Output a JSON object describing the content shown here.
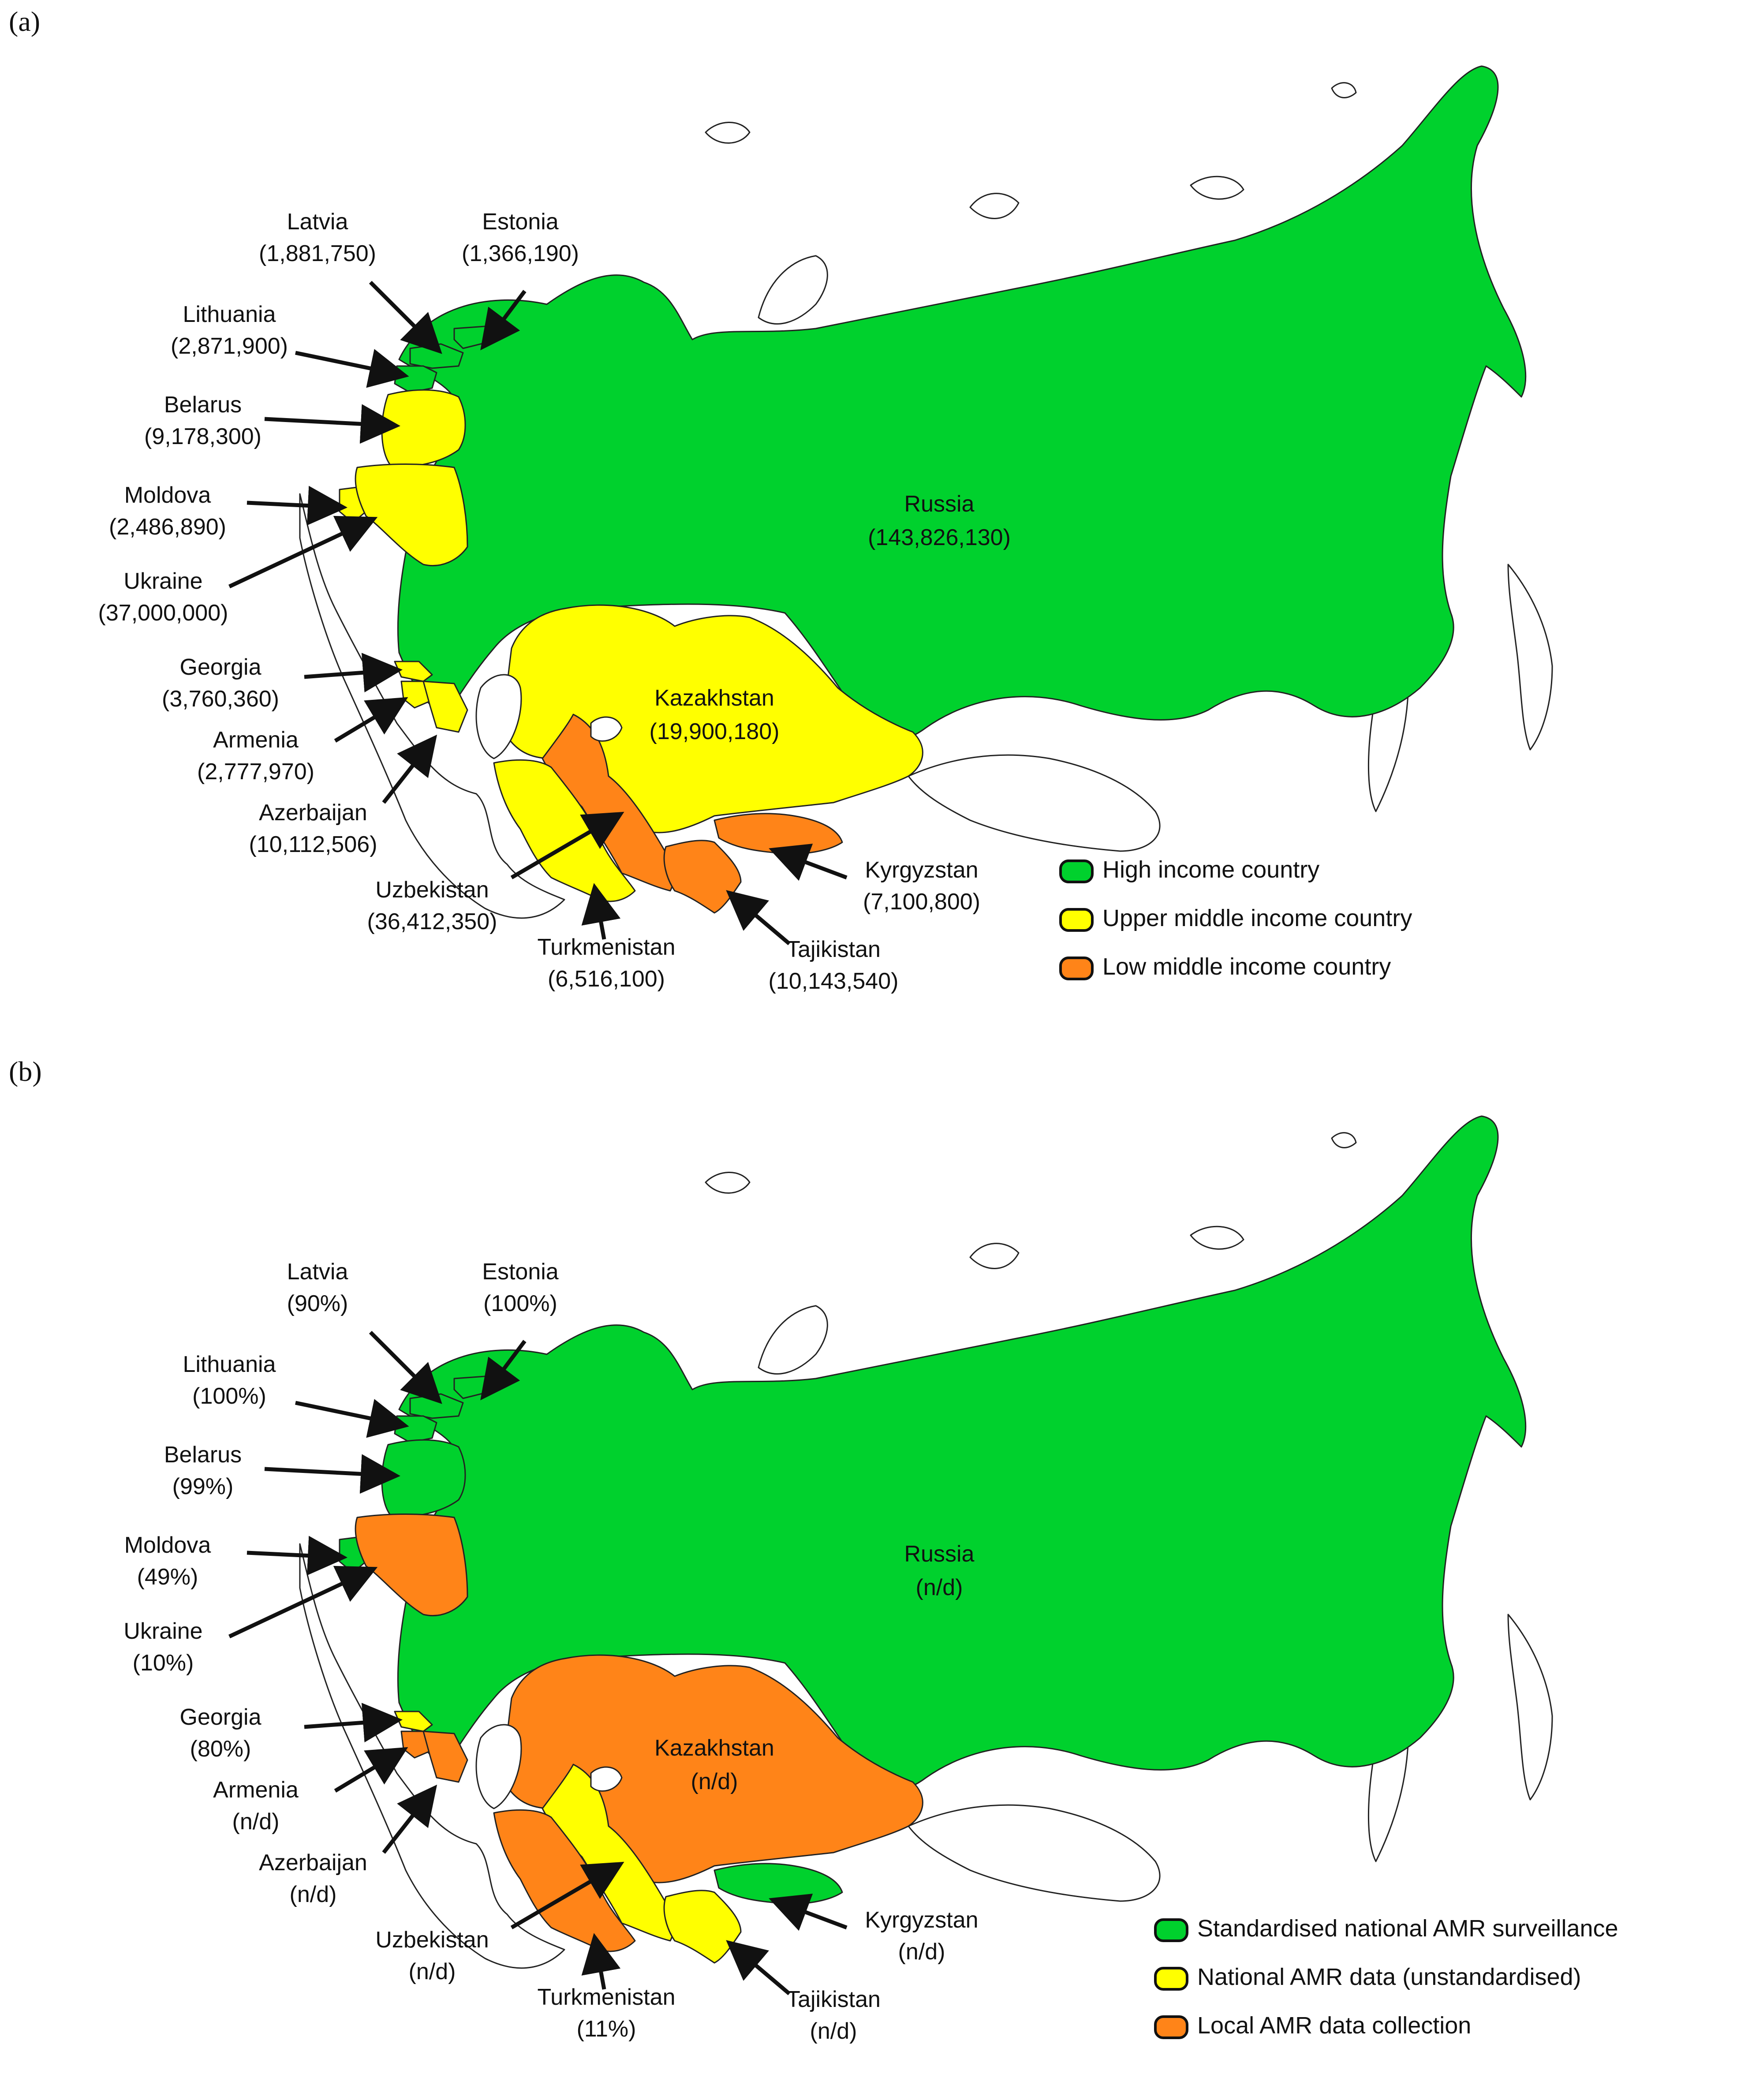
{
  "colors": {
    "green": "#00d12d",
    "yellow": "#ffff00",
    "orange": "#ff8418",
    "outline": "#222222"
  },
  "panels": [
    {
      "letter": "(a)",
      "legend": [
        {
          "label": "High income country",
          "color": "green"
        },
        {
          "label": "Upper middle income country",
          "color": "yellow"
        },
        {
          "label": "Low middle income country",
          "color": "orange"
        }
      ],
      "countries": [
        {
          "key": "russia",
          "name": "Russia",
          "value": "(143,826,130)",
          "color": "green"
        },
        {
          "key": "kazakhstan",
          "name": "Kazakhstan",
          "value": "(19,900,180)",
          "color": "yellow"
        },
        {
          "key": "latvia",
          "name": "Latvia",
          "value": "(1,881,750)",
          "color": "green"
        },
        {
          "key": "estonia",
          "name": "Estonia",
          "value": "(1,366,190)",
          "color": "green"
        },
        {
          "key": "lithuania",
          "name": "Lithuania",
          "value": "(2,871,900)",
          "color": "green"
        },
        {
          "key": "belarus",
          "name": "Belarus",
          "value": "(9,178,300)",
          "color": "yellow"
        },
        {
          "key": "moldova",
          "name": "Moldova",
          "value": "(2,486,890)",
          "color": "yellow"
        },
        {
          "key": "ukraine",
          "name": "Ukraine",
          "value": "(37,000,000)",
          "color": "yellow"
        },
        {
          "key": "georgia",
          "name": "Georgia",
          "value": "(3,760,360)",
          "color": "yellow"
        },
        {
          "key": "armenia",
          "name": "Armenia",
          "value": "(2,777,970)",
          "color": "yellow"
        },
        {
          "key": "azerbaijan",
          "name": "Azerbaijan",
          "value": "(10,112,506)",
          "color": "yellow"
        },
        {
          "key": "uzbekistan",
          "name": "Uzbekistan",
          "value": "(36,412,350)",
          "color": "orange"
        },
        {
          "key": "turkmenistan",
          "name": "Turkmenistan",
          "value": "(6,516,100)",
          "color": "yellow"
        },
        {
          "key": "tajikistan",
          "name": "Tajikistan",
          "value": "(10,143,540)",
          "color": "orange"
        },
        {
          "key": "kyrgyzstan",
          "name": "Kyrgyzstan",
          "value": "(7,100,800)",
          "color": "orange"
        }
      ]
    },
    {
      "letter": "(b)",
      "legend": [
        {
          "label": "Standardised national AMR surveillance",
          "color": "green"
        },
        {
          "label": "National AMR data (unstandardised)",
          "color": "yellow"
        },
        {
          "label": "Local AMR data collection",
          "color": "orange"
        }
      ],
      "countries": [
        {
          "key": "russia",
          "name": "Russia",
          "value": "(n/d)",
          "color": "green"
        },
        {
          "key": "kazakhstan",
          "name": "Kazakhstan",
          "value": "(n/d)",
          "color": "orange"
        },
        {
          "key": "latvia",
          "name": "Latvia",
          "value": "(90%)",
          "color": "green"
        },
        {
          "key": "estonia",
          "name": "Estonia",
          "value": "(100%)",
          "color": "green"
        },
        {
          "key": "lithuania",
          "name": "Lithuania",
          "value": "(100%)",
          "color": "green"
        },
        {
          "key": "belarus",
          "name": "Belarus",
          "value": "(99%)",
          "color": "green"
        },
        {
          "key": "moldova",
          "name": "Moldova",
          "value": "(49%)",
          "color": "green"
        },
        {
          "key": "ukraine",
          "name": "Ukraine",
          "value": "(10%)",
          "color": "orange"
        },
        {
          "key": "georgia",
          "name": "Georgia",
          "value": "(80%)",
          "color": "yellow"
        },
        {
          "key": "armenia",
          "name": "Armenia",
          "value": "(n/d)",
          "color": "orange"
        },
        {
          "key": "azerbaijan",
          "name": "Azerbaijan",
          "value": "(n/d)",
          "color": "orange"
        },
        {
          "key": "uzbekistan",
          "name": "Uzbekistan",
          "value": "(n/d)",
          "color": "yellow"
        },
        {
          "key": "turkmenistan",
          "name": "Turkmenistan",
          "value": "(11%)",
          "color": "orange"
        },
        {
          "key": "tajikistan",
          "name": "Tajikistan",
          "value": "(n/d)",
          "color": "yellow"
        },
        {
          "key": "kyrgyzstan",
          "name": "Kyrgyzstan",
          "value": "(n/d)",
          "color": "green"
        }
      ]
    }
  ]
}
